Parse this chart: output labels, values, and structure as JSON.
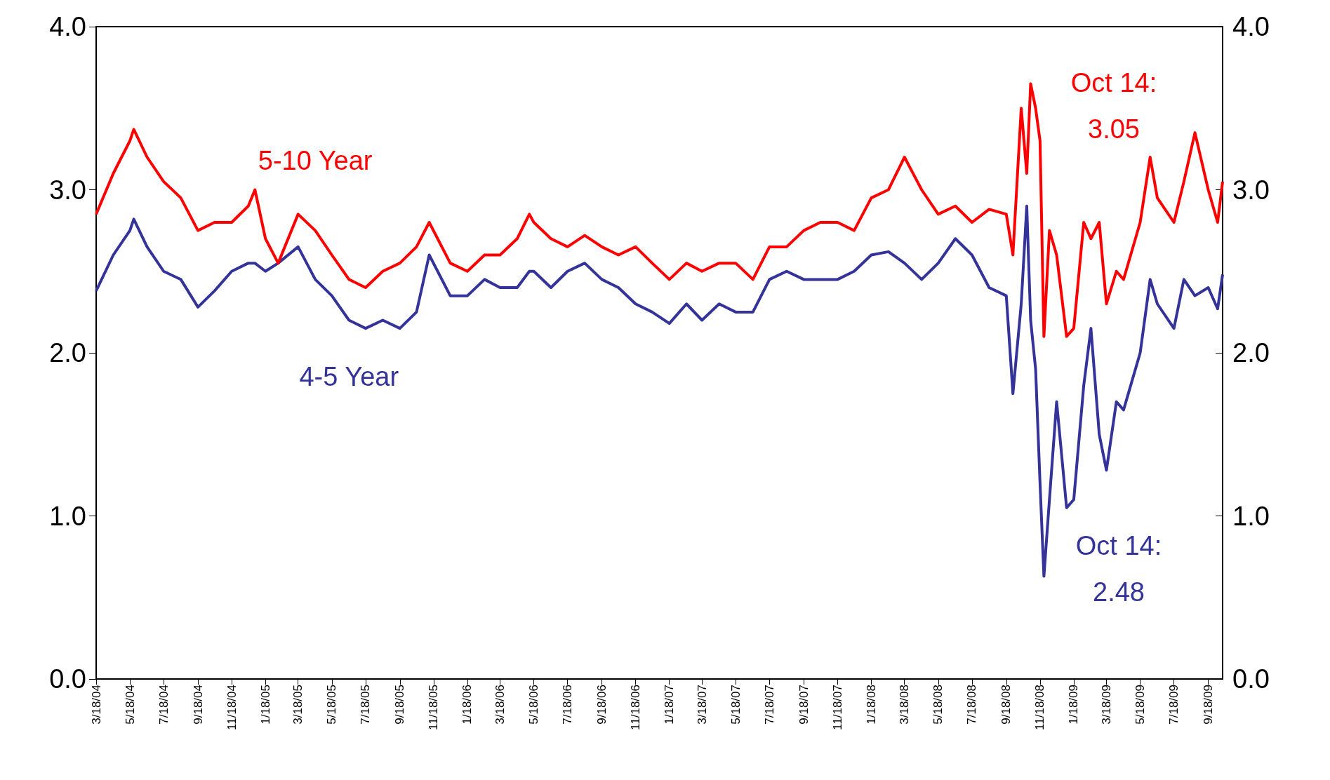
{
  "chart_data": {
    "type": "line",
    "x": [
      "2004-03-18",
      "2004-04-18",
      "2004-05-18",
      "2004-05-25",
      "2004-06-18",
      "2004-07-18",
      "2004-08-18",
      "2004-09-18",
      "2004-10-18",
      "2004-11-18",
      "2004-12-18",
      "2004-12-30",
      "2005-01-18",
      "2005-02-10",
      "2005-03-18",
      "2005-04-18",
      "2005-05-18",
      "2005-06-18",
      "2005-07-18",
      "2005-08-18",
      "2005-09-18",
      "2005-10-18",
      "2005-11-10",
      "2005-12-18",
      "2006-01-18",
      "2006-02-18",
      "2006-03-18",
      "2006-04-18",
      "2006-05-10",
      "2006-05-18",
      "2006-06-18",
      "2006-07-18",
      "2006-08-18",
      "2006-09-18",
      "2006-10-18",
      "2006-11-18",
      "2006-12-18",
      "2007-01-18",
      "2007-02-18",
      "2007-03-18",
      "2007-04-18",
      "2007-05-18",
      "2007-06-18",
      "2007-07-18",
      "2007-08-18",
      "2007-09-18",
      "2007-10-18",
      "2007-11-18",
      "2007-12-18",
      "2008-01-18",
      "2008-02-18",
      "2008-03-18",
      "2008-04-18",
      "2008-05-18",
      "2008-06-18",
      "2008-07-18",
      "2008-08-18",
      "2008-09-18",
      "2008-09-30",
      "2008-10-15",
      "2008-10-25",
      "2008-11-01",
      "2008-11-10",
      "2008-11-18",
      "2008-11-25",
      "2008-12-05",
      "2008-12-18",
      "2009-01-05",
      "2009-01-18",
      "2009-02-05",
      "2009-02-18",
      "2009-03-05",
      "2009-03-18",
      "2009-04-05",
      "2009-04-18",
      "2009-05-18",
      "2009-06-05",
      "2009-06-18",
      "2009-07-18",
      "2009-08-05",
      "2009-08-25",
      "2009-09-18",
      "2009-10-05",
      "2009-10-14"
    ],
    "xlim": [
      "2004-03-18",
      "2009-10-14"
    ],
    "xticks": [
      {
        "value": "2004-03-18",
        "label": "3/18/04"
      },
      {
        "value": "2004-05-18",
        "label": "5/18/04"
      },
      {
        "value": "2004-07-18",
        "label": "7/18/04"
      },
      {
        "value": "2004-09-18",
        "label": "9/18/04"
      },
      {
        "value": "2004-11-18",
        "label": "11/18/04"
      },
      {
        "value": "2005-01-18",
        "label": "1/18/05"
      },
      {
        "value": "2005-03-18",
        "label": "3/18/05"
      },
      {
        "value": "2005-05-18",
        "label": "5/18/05"
      },
      {
        "value": "2005-07-18",
        "label": "7/18/05"
      },
      {
        "value": "2005-09-18",
        "label": "9/18/05"
      },
      {
        "value": "2005-11-18",
        "label": "11/18/05"
      },
      {
        "value": "2006-01-18",
        "label": "1/18/06"
      },
      {
        "value": "2006-03-18",
        "label": "3/18/06"
      },
      {
        "value": "2006-05-18",
        "label": "5/18/06"
      },
      {
        "value": "2006-07-18",
        "label": "7/18/06"
      },
      {
        "value": "2006-09-18",
        "label": "9/18/06"
      },
      {
        "value": "2006-11-18",
        "label": "11/18/06"
      },
      {
        "value": "2007-01-18",
        "label": "1/18/07"
      },
      {
        "value": "2007-03-18",
        "label": "3/18/07"
      },
      {
        "value": "2007-05-18",
        "label": "5/18/07"
      },
      {
        "value": "2007-07-18",
        "label": "7/18/07"
      },
      {
        "value": "2007-09-18",
        "label": "9/18/07"
      },
      {
        "value": "2007-11-18",
        "label": "11/18/07"
      },
      {
        "value": "2008-01-18",
        "label": "1/18/08"
      },
      {
        "value": "2008-03-18",
        "label": "3/18/08"
      },
      {
        "value": "2008-05-18",
        "label": "5/18/08"
      },
      {
        "value": "2008-07-18",
        "label": "7/18/08"
      },
      {
        "value": "2008-09-18",
        "label": "9/18/08"
      },
      {
        "value": "2008-11-18",
        "label": "11/18/08"
      },
      {
        "value": "2009-01-18",
        "label": "1/18/09"
      },
      {
        "value": "2009-03-18",
        "label": "3/18/09"
      },
      {
        "value": "2009-05-18",
        "label": "5/18/09"
      },
      {
        "value": "2009-07-18",
        "label": "7/18/09"
      },
      {
        "value": "2009-09-18",
        "label": "9/18/09"
      }
    ],
    "ylim": [
      0,
      4
    ],
    "yticks": [
      {
        "value": 0,
        "label": "0.0"
      },
      {
        "value": 1,
        "label": "1.0"
      },
      {
        "value": 2,
        "label": "2.0"
      },
      {
        "value": 3,
        "label": "3.0"
      },
      {
        "value": 4,
        "label": "4.0"
      }
    ],
    "y2lim": [
      0,
      4
    ],
    "y2ticks": [
      {
        "value": 0,
        "label": "0.0"
      },
      {
        "value": 1,
        "label": "1.0"
      },
      {
        "value": 2,
        "label": "2.0"
      },
      {
        "value": 3,
        "label": "3.0"
      },
      {
        "value": 4,
        "label": "4.0"
      }
    ],
    "grid": false,
    "legend": false,
    "marker": "none",
    "line_style": "solid",
    "series": [
      {
        "name": "5-10 Year",
        "color": "#ff0000",
        "values": [
          2.85,
          3.1,
          3.3,
          3.37,
          3.2,
          3.05,
          2.95,
          2.75,
          2.8,
          2.8,
          2.9,
          3.0,
          2.7,
          2.55,
          2.85,
          2.75,
          2.6,
          2.45,
          2.4,
          2.5,
          2.55,
          2.65,
          2.8,
          2.55,
          2.5,
          2.6,
          2.6,
          2.7,
          2.85,
          2.8,
          2.7,
          2.65,
          2.72,
          2.65,
          2.6,
          2.65,
          2.55,
          2.45,
          2.55,
          2.5,
          2.55,
          2.55,
          2.45,
          2.65,
          2.65,
          2.75,
          2.8,
          2.8,
          2.75,
          2.95,
          3.0,
          3.2,
          3.0,
          2.85,
          2.9,
          2.8,
          2.88,
          2.85,
          2.6,
          3.5,
          3.1,
          3.65,
          3.5,
          3.3,
          2.1,
          2.75,
          2.6,
          2.1,
          2.15,
          2.8,
          2.7,
          2.8,
          2.3,
          2.5,
          2.45,
          2.8,
          3.2,
          2.95,
          2.8,
          3.05,
          3.35,
          3.0,
          2.8,
          3.05
        ]
      },
      {
        "name": "4-5 Year",
        "color": "#333399",
        "values": [
          2.38,
          2.6,
          2.75,
          2.82,
          2.65,
          2.5,
          2.45,
          2.28,
          2.38,
          2.5,
          2.55,
          2.55,
          2.5,
          2.55,
          2.65,
          2.45,
          2.35,
          2.2,
          2.15,
          2.2,
          2.15,
          2.25,
          2.6,
          2.35,
          2.35,
          2.45,
          2.4,
          2.4,
          2.5,
          2.5,
          2.4,
          2.5,
          2.55,
          2.45,
          2.4,
          2.3,
          2.25,
          2.18,
          2.3,
          2.2,
          2.3,
          2.25,
          2.25,
          2.45,
          2.5,
          2.45,
          2.45,
          2.45,
          2.5,
          2.6,
          2.62,
          2.55,
          2.45,
          2.55,
          2.7,
          2.6,
          2.4,
          2.35,
          1.75,
          2.3,
          2.9,
          2.2,
          1.9,
          1.2,
          0.63,
          1.1,
          1.7,
          1.05,
          1.1,
          1.8,
          2.15,
          1.5,
          1.28,
          1.7,
          1.65,
          2.0,
          2.45,
          2.3,
          2.15,
          2.45,
          2.35,
          2.4,
          2.27,
          2.48
        ]
      }
    ],
    "annotations": [
      "Oct 14:\n3.05",
      "Oct 14:\n2.48"
    ]
  }
}
